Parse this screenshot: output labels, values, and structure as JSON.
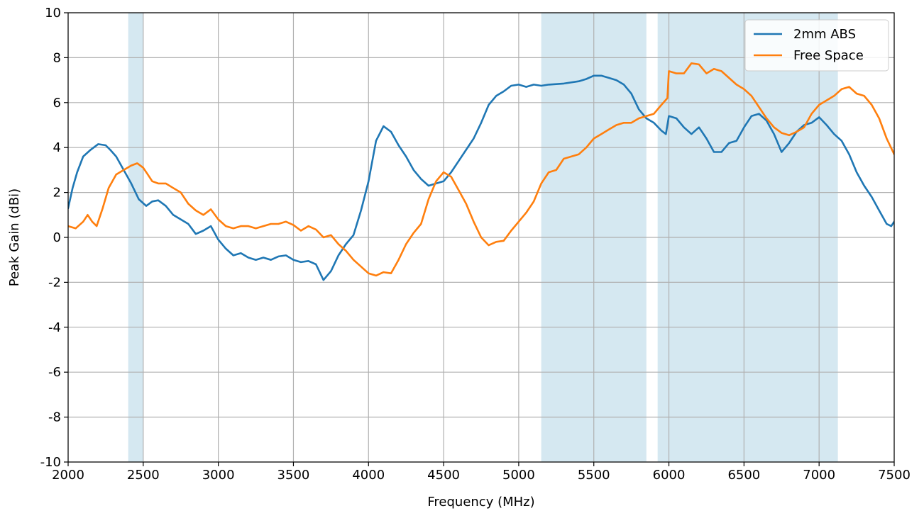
{
  "chart_data": {
    "type": "line",
    "title": "",
    "xlabel": "Frequency (MHz)",
    "ylabel": "Peak Gain (dBi)",
    "xlim": [
      2000,
      7500
    ],
    "ylim": [
      -10,
      10
    ],
    "x_ticks": [
      2000,
      2500,
      3000,
      3500,
      4000,
      4500,
      5000,
      5500,
      6000,
      6500,
      7000,
      7500
    ],
    "y_ticks": [
      -10,
      -8,
      -6,
      -4,
      -2,
      0,
      2,
      4,
      6,
      8,
      10
    ],
    "grid": true,
    "legend_position": "top-right",
    "shaded_bands": [
      {
        "from": 2400,
        "to": 2500,
        "color": "#d5e8f1"
      },
      {
        "from": 5150,
        "to": 5850,
        "color": "#d5e8f1"
      },
      {
        "from": 5925,
        "to": 7125,
        "color": "#d5e8f1"
      }
    ],
    "series": [
      {
        "name": "2mm ABS",
        "color": "#1f77b4",
        "points": [
          [
            2000,
            1.3
          ],
          [
            2030,
            2.2
          ],
          [
            2060,
            2.9
          ],
          [
            2100,
            3.6
          ],
          [
            2150,
            3.9
          ],
          [
            2200,
            4.15
          ],
          [
            2250,
            4.1
          ],
          [
            2280,
            3.9
          ],
          [
            2320,
            3.6
          ],
          [
            2370,
            3.0
          ],
          [
            2420,
            2.4
          ],
          [
            2470,
            1.7
          ],
          [
            2520,
            1.4
          ],
          [
            2560,
            1.6
          ],
          [
            2600,
            1.65
          ],
          [
            2650,
            1.4
          ],
          [
            2700,
            1.0
          ],
          [
            2750,
            0.8
          ],
          [
            2800,
            0.6
          ],
          [
            2850,
            0.15
          ],
          [
            2900,
            0.3
          ],
          [
            2950,
            0.5
          ],
          [
            3000,
            -0.1
          ],
          [
            3050,
            -0.5
          ],
          [
            3100,
            -0.8
          ],
          [
            3150,
            -0.7
          ],
          [
            3200,
            -0.9
          ],
          [
            3250,
            -1.0
          ],
          [
            3300,
            -0.9
          ],
          [
            3350,
            -1.0
          ],
          [
            3400,
            -0.85
          ],
          [
            3450,
            -0.8
          ],
          [
            3500,
            -1.0
          ],
          [
            3550,
            -1.1
          ],
          [
            3600,
            -1.05
          ],
          [
            3650,
            -1.2
          ],
          [
            3700,
            -1.9
          ],
          [
            3750,
            -1.5
          ],
          [
            3800,
            -0.8
          ],
          [
            3850,
            -0.3
          ],
          [
            3900,
            0.1
          ],
          [
            3950,
            1.2
          ],
          [
            4000,
            2.5
          ],
          [
            4050,
            4.3
          ],
          [
            4100,
            4.95
          ],
          [
            4150,
            4.7
          ],
          [
            4200,
            4.1
          ],
          [
            4250,
            3.6
          ],
          [
            4300,
            3.0
          ],
          [
            4350,
            2.6
          ],
          [
            4400,
            2.3
          ],
          [
            4450,
            2.4
          ],
          [
            4500,
            2.5
          ],
          [
            4550,
            2.9
          ],
          [
            4600,
            3.4
          ],
          [
            4650,
            3.9
          ],
          [
            4700,
            4.4
          ],
          [
            4750,
            5.1
          ],
          [
            4800,
            5.9
          ],
          [
            4850,
            6.3
          ],
          [
            4900,
            6.5
          ],
          [
            4950,
            6.75
          ],
          [
            5000,
            6.8
          ],
          [
            5050,
            6.7
          ],
          [
            5100,
            6.8
          ],
          [
            5150,
            6.75
          ],
          [
            5200,
            6.8
          ],
          [
            5300,
            6.85
          ],
          [
            5400,
            6.95
          ],
          [
            5450,
            7.05
          ],
          [
            5500,
            7.2
          ],
          [
            5550,
            7.2
          ],
          [
            5600,
            7.1
          ],
          [
            5650,
            7.0
          ],
          [
            5700,
            6.8
          ],
          [
            5750,
            6.4
          ],
          [
            5800,
            5.7
          ],
          [
            5850,
            5.3
          ],
          [
            5900,
            5.1
          ],
          [
            5950,
            4.75
          ],
          [
            5980,
            4.6
          ],
          [
            6000,
            5.4
          ],
          [
            6050,
            5.3
          ],
          [
            6100,
            4.9
          ],
          [
            6150,
            4.6
          ],
          [
            6200,
            4.9
          ],
          [
            6250,
            4.4
          ],
          [
            6300,
            3.8
          ],
          [
            6350,
            3.8
          ],
          [
            6400,
            4.2
          ],
          [
            6450,
            4.3
          ],
          [
            6500,
            4.9
          ],
          [
            6550,
            5.4
          ],
          [
            6600,
            5.5
          ],
          [
            6650,
            5.2
          ],
          [
            6700,
            4.6
          ],
          [
            6750,
            3.8
          ],
          [
            6800,
            4.2
          ],
          [
            6850,
            4.7
          ],
          [
            6900,
            5.0
          ],
          [
            6950,
            5.1
          ],
          [
            7000,
            5.35
          ],
          [
            7050,
            5.0
          ],
          [
            7100,
            4.6
          ],
          [
            7150,
            4.3
          ],
          [
            7200,
            3.7
          ],
          [
            7250,
            2.9
          ],
          [
            7300,
            2.3
          ],
          [
            7350,
            1.8
          ],
          [
            7400,
            1.2
          ],
          [
            7450,
            0.6
          ],
          [
            7480,
            0.5
          ],
          [
            7500,
            0.7
          ]
        ]
      },
      {
        "name": "Free Space",
        "color": "#ff7f0e",
        "points": [
          [
            2000,
            0.5
          ],
          [
            2050,
            0.4
          ],
          [
            2100,
            0.7
          ],
          [
            2130,
            1.0
          ],
          [
            2160,
            0.7
          ],
          [
            2190,
            0.5
          ],
          [
            2230,
            1.3
          ],
          [
            2270,
            2.2
          ],
          [
            2320,
            2.8
          ],
          [
            2370,
            3.0
          ],
          [
            2420,
            3.2
          ],
          [
            2460,
            3.3
          ],
          [
            2500,
            3.1
          ],
          [
            2530,
            2.8
          ],
          [
            2560,
            2.5
          ],
          [
            2600,
            2.4
          ],
          [
            2650,
            2.4
          ],
          [
            2700,
            2.2
          ],
          [
            2750,
            2.0
          ],
          [
            2800,
            1.5
          ],
          [
            2850,
            1.2
          ],
          [
            2900,
            1.0
          ],
          [
            2950,
            1.25
          ],
          [
            3000,
            0.8
          ],
          [
            3050,
            0.5
          ],
          [
            3100,
            0.4
          ],
          [
            3150,
            0.5
          ],
          [
            3200,
            0.5
          ],
          [
            3250,
            0.4
          ],
          [
            3300,
            0.5
          ],
          [
            3350,
            0.6
          ],
          [
            3400,
            0.6
          ],
          [
            3450,
            0.7
          ],
          [
            3500,
            0.55
          ],
          [
            3550,
            0.3
          ],
          [
            3600,
            0.5
          ],
          [
            3650,
            0.35
          ],
          [
            3700,
            0.0
          ],
          [
            3750,
            0.1
          ],
          [
            3800,
            -0.3
          ],
          [
            3850,
            -0.6
          ],
          [
            3900,
            -1.0
          ],
          [
            3950,
            -1.3
          ],
          [
            4000,
            -1.6
          ],
          [
            4050,
            -1.7
          ],
          [
            4100,
            -1.55
          ],
          [
            4150,
            -1.6
          ],
          [
            4200,
            -1.0
          ],
          [
            4250,
            -0.3
          ],
          [
            4300,
            0.2
          ],
          [
            4350,
            0.6
          ],
          [
            4400,
            1.7
          ],
          [
            4450,
            2.5
          ],
          [
            4500,
            2.9
          ],
          [
            4550,
            2.7
          ],
          [
            4600,
            2.1
          ],
          [
            4650,
            1.5
          ],
          [
            4700,
            0.7
          ],
          [
            4750,
            0.0
          ],
          [
            4800,
            -0.35
          ],
          [
            4850,
            -0.2
          ],
          [
            4900,
            -0.15
          ],
          [
            4950,
            0.3
          ],
          [
            5000,
            0.7
          ],
          [
            5050,
            1.1
          ],
          [
            5100,
            1.6
          ],
          [
            5150,
            2.4
          ],
          [
            5200,
            2.9
          ],
          [
            5250,
            3.0
          ],
          [
            5300,
            3.5
          ],
          [
            5350,
            3.6
          ],
          [
            5400,
            3.7
          ],
          [
            5450,
            4.0
          ],
          [
            5500,
            4.4
          ],
          [
            5550,
            4.6
          ],
          [
            5600,
            4.8
          ],
          [
            5650,
            5.0
          ],
          [
            5700,
            5.1
          ],
          [
            5750,
            5.1
          ],
          [
            5800,
            5.3
          ],
          [
            5850,
            5.4
          ],
          [
            5900,
            5.5
          ],
          [
            5950,
            5.9
          ],
          [
            5990,
            6.2
          ],
          [
            6000,
            7.4
          ],
          [
            6050,
            7.3
          ],
          [
            6100,
            7.3
          ],
          [
            6150,
            7.75
          ],
          [
            6200,
            7.7
          ],
          [
            6250,
            7.3
          ],
          [
            6300,
            7.5
          ],
          [
            6350,
            7.4
          ],
          [
            6400,
            7.1
          ],
          [
            6450,
            6.8
          ],
          [
            6500,
            6.6
          ],
          [
            6550,
            6.3
          ],
          [
            6600,
            5.8
          ],
          [
            6650,
            5.3
          ],
          [
            6700,
            4.9
          ],
          [
            6750,
            4.65
          ],
          [
            6800,
            4.55
          ],
          [
            6850,
            4.7
          ],
          [
            6900,
            4.9
          ],
          [
            6950,
            5.5
          ],
          [
            7000,
            5.9
          ],
          [
            7050,
            6.1
          ],
          [
            7100,
            6.3
          ],
          [
            7150,
            6.6
          ],
          [
            7200,
            6.7
          ],
          [
            7250,
            6.4
          ],
          [
            7300,
            6.3
          ],
          [
            7350,
            5.9
          ],
          [
            7400,
            5.3
          ],
          [
            7450,
            4.4
          ],
          [
            7500,
            3.7
          ]
        ]
      }
    ]
  }
}
